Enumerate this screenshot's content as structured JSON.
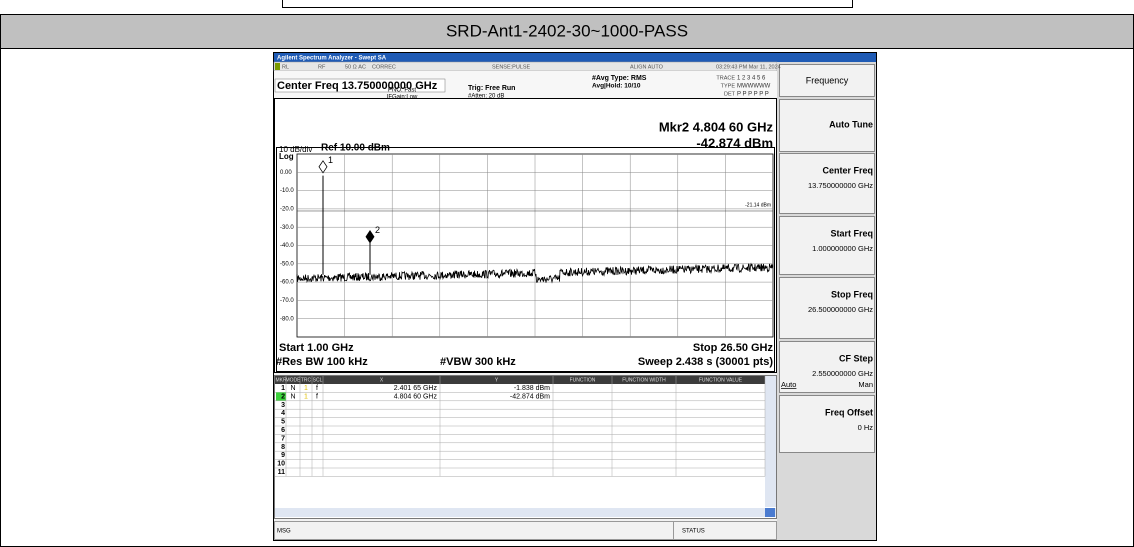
{
  "header": {
    "title": "SRD-Ant1-2402-30~1000-PASS"
  },
  "analyzer": {
    "window_title": "Agilent Spectrum Analyzer - Swept SA",
    "status_bar": [
      "RL",
      "RF",
      "50 Ω  AC",
      "CORREC",
      "SENSE:PULSE",
      "ALIGN AUTO",
      "03:29:43 PM Mar 11, 2024"
    ],
    "center_freq": "Center Freq 13.750000000 GHz",
    "pno": "PNO: Fast",
    "ifgain": "IFGain:Low",
    "trig": "Trig: Free Run",
    "atten": "#Atten: 20 dB",
    "avg_type": "#Avg Type: RMS",
    "avg_hold": "Avg|Hold: 10/10",
    "trace_info": [
      {
        "label": "TRACE",
        "values": "1 2 3 4 5 6"
      },
      {
        "label": "TYPE",
        "values": "MWWWWW"
      },
      {
        "label": "DET",
        "values": "P P P P P P"
      }
    ],
    "scale": "10 dB/div",
    "ref": "Ref 10.00 dBm",
    "log": "Log",
    "marker_readout": [
      "Mkr2 4.804 60 GHz",
      "-42.874 dBm"
    ],
    "y_labels": [
      "0.00",
      "-10.0",
      "-20.0",
      "-30.0",
      "-40.0",
      "-50.0",
      "-60.0",
      "-70.0",
      "-80.0"
    ],
    "display_line": "-21.14 dBm",
    "markers": [
      "1",
      "2"
    ],
    "start": "Start 1.00 GHz",
    "stop": "Stop 26.50 GHz",
    "rbw": "#Res BW 100 kHz",
    "vbw": "#VBW 300 kHz",
    "sweep": "Sweep  2.438 s (30001 pts)",
    "table": {
      "headers": [
        "MKR",
        "MODE",
        "TRC",
        "SCL",
        "X",
        "Y",
        "FUNCTION",
        "FUNCTION WIDTH",
        "FUNCTION VALUE"
      ],
      "rows": [
        {
          "n": "1",
          "mode": "N",
          "trc": "1",
          "scl": "f",
          "x": "2.401 65 GHz",
          "y": "-1.838 dBm"
        },
        {
          "n": "2",
          "mode": "N",
          "trc": "1",
          "scl": "f",
          "x": "4.804 60 GHz",
          "y": "-42.874 dBm"
        },
        {
          "n": "3"
        },
        {
          "n": "4"
        },
        {
          "n": "5"
        },
        {
          "n": "6"
        },
        {
          "n": "7"
        },
        {
          "n": "8"
        },
        {
          "n": "9"
        },
        {
          "n": "10"
        },
        {
          "n": "11"
        }
      ]
    },
    "msg": "MSG",
    "status": "STATUS"
  },
  "softkeys": {
    "menu": "Frequency",
    "keys": [
      {
        "label": "Auto Tune"
      },
      {
        "label": "Center Freq",
        "value": "13.750000000 GHz"
      },
      {
        "label": "Start Freq",
        "value": "1.000000000 GHz"
      },
      {
        "label": "Stop Freq",
        "value": "26.500000000 GHz"
      },
      {
        "label": "CF Step",
        "value": "2.550000000 GHz"
      },
      {
        "label": "Freq Offset",
        "value": "0 Hz"
      }
    ],
    "cf_auto": "Auto",
    "cf_man": "Man"
  }
}
